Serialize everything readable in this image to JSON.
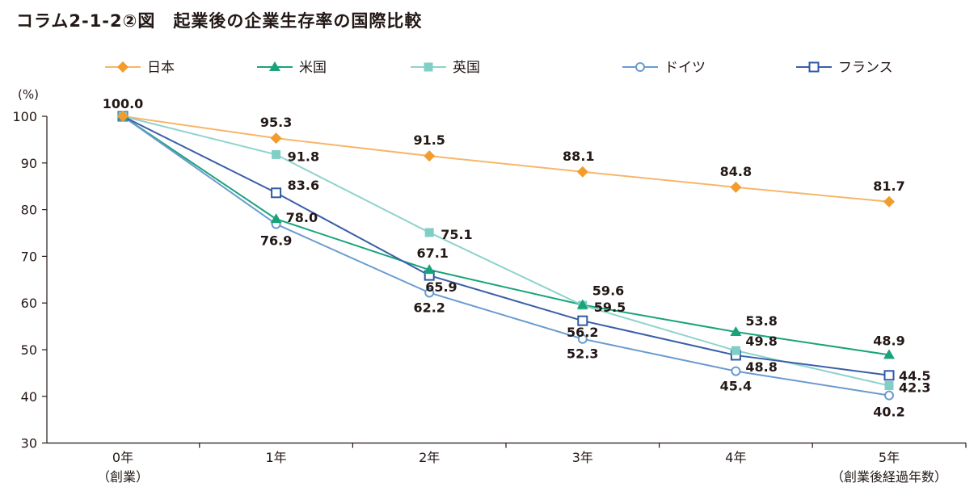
{
  "title": "コラム2-1-2②図　起業後の企業生存率の国際比較",
  "chart_data": {
    "type": "line",
    "title": "コラム2-1-2②図　起業後の企業生存率の国際比較",
    "ylabel": "(%)",
    "xlabel": "",
    "ylim": [
      30,
      100
    ],
    "yticks": [
      30,
      40,
      50,
      60,
      70,
      80,
      90,
      100
    ],
    "grid": false,
    "legend_position": "top",
    "x_tick_labels": [
      "0年",
      "1年",
      "2年",
      "3年",
      "4年",
      "5年"
    ],
    "x_tick_sublabels": [
      "（創業）",
      "",
      "",
      "",
      "",
      "（創業後経過年数）"
    ],
    "series": [
      {
        "name": "日本",
        "color": "#f39c2d",
        "line_color": "#f7b66a",
        "marker": "diamond",
        "values": [
          100.0,
          95.3,
          91.5,
          88.1,
          84.8,
          81.7
        ],
        "labels": [
          "",
          "95.3",
          "91.5",
          "88.1",
          "84.8",
          "81.7"
        ]
      },
      {
        "name": "米国",
        "color": "#1aa37a",
        "line_color": "#1aa37a",
        "marker": "triangle",
        "values": [
          100.0,
          78.0,
          67.1,
          59.6,
          53.8,
          48.9
        ],
        "labels": [
          "",
          "78.0",
          "67.1",
          "59.6",
          "53.8",
          "48.9"
        ]
      },
      {
        "name": "英国",
        "color": "#7fcfc7",
        "line_color": "#8fd3cb",
        "marker": "square-filled",
        "values": [
          100.0,
          91.8,
          75.1,
          59.5,
          49.8,
          42.3
        ],
        "labels": [
          "",
          "91.8",
          "75.1",
          "59.5",
          "49.8",
          "42.3"
        ]
      },
      {
        "name": "ドイツ",
        "color": "#6a9bd0",
        "line_color": "#6a9bd0",
        "marker": "circle-open",
        "values": [
          100.0,
          76.9,
          62.2,
          52.3,
          45.4,
          40.2
        ],
        "labels": [
          "",
          "76.9",
          "62.2",
          "52.3",
          "45.4",
          "40.2"
        ]
      },
      {
        "name": "フランス",
        "color": "#2f5aa5",
        "line_color": "#3a5fa8",
        "marker": "square-open",
        "values": [
          100.0,
          83.6,
          65.9,
          56.2,
          48.8,
          44.5
        ],
        "labels": [
          "",
          "83.6",
          "65.9",
          "56.2",
          "48.8",
          "44.5"
        ]
      }
    ],
    "start_label": "100.0"
  }
}
